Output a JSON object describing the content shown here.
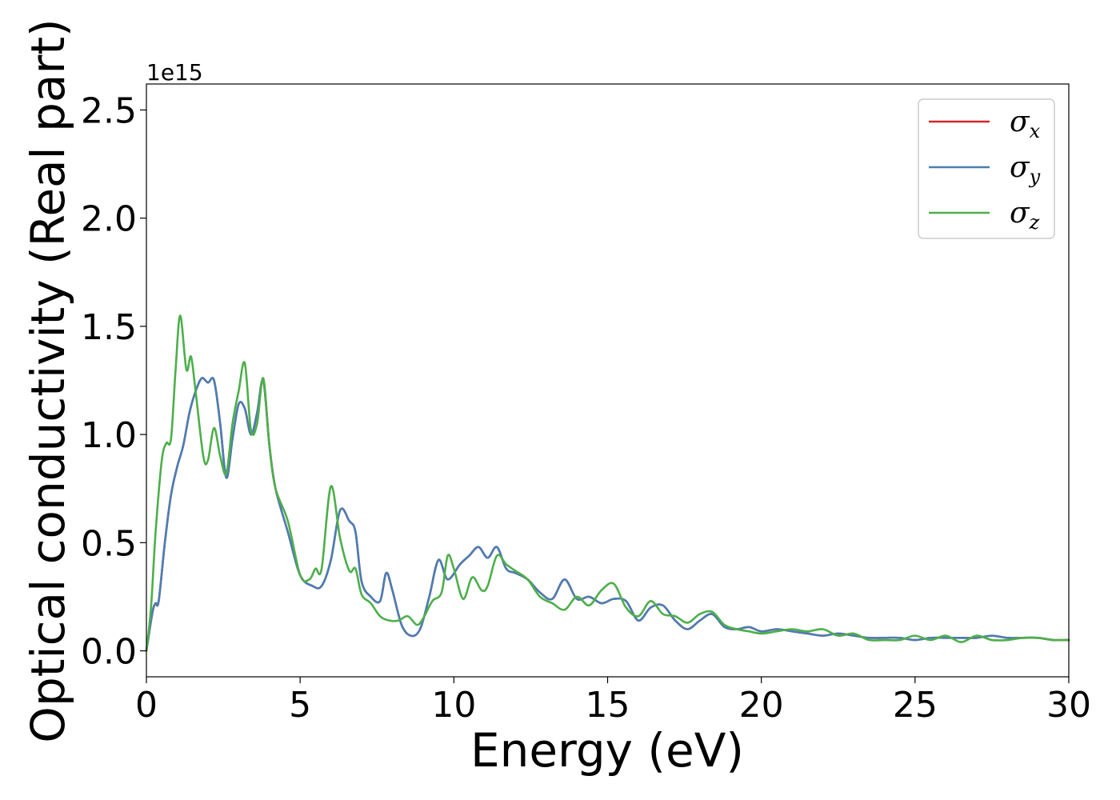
{
  "chart_data": {
    "type": "line",
    "xlabel": "Energy (eV)",
    "ylabel": "Optical conductivity (Real part)",
    "y_scale_note": "1e15",
    "xlim": [
      0,
      30
    ],
    "ylim": [
      -0.12,
      2.62
    ],
    "x_ticks": [
      0,
      5,
      10,
      15,
      20,
      25,
      30
    ],
    "y_ticks": [
      0.0,
      0.5,
      1.0,
      1.5,
      2.0,
      2.5
    ],
    "x_tick_labels": [
      "0",
      "5",
      "10",
      "15",
      "20",
      "25",
      "30"
    ],
    "y_tick_labels": [
      "0.0",
      "0.5",
      "1.0",
      "1.5",
      "2.0",
      "2.5"
    ],
    "grid": false,
    "legend_position": "top-right",
    "series": [
      {
        "name": "σx",
        "base": "σ",
        "sub": "x",
        "color": "#d62728",
        "x": [
          0,
          0.2,
          0.3,
          0.4,
          0.6,
          0.8,
          1.0,
          1.2,
          1.4,
          1.6,
          1.8,
          2.0,
          2.2,
          2.4,
          2.6,
          2.8,
          3.0,
          3.2,
          3.4,
          3.6,
          3.8,
          4.0,
          4.2,
          4.6,
          5.0,
          5.4,
          5.7,
          6.0,
          6.3,
          6.6,
          6.8,
          7.0,
          7.3,
          7.6,
          7.8,
          8.0,
          8.3,
          8.6,
          8.9,
          9.2,
          9.5,
          9.8,
          10.2,
          10.5,
          10.8,
          11.1,
          11.4,
          11.7,
          12.0,
          12.4,
          12.8,
          13.2,
          13.6,
          14.0,
          14.4,
          14.8,
          15.2,
          15.6,
          16.0,
          16.4,
          16.8,
          17.2,
          17.6,
          18.0,
          18.4,
          18.8,
          19.2,
          19.6,
          20.0,
          20.5,
          21.0,
          21.5,
          22.0,
          22.5,
          23.0,
          23.5,
          24.0,
          24.5,
          25.0,
          25.5,
          26.0,
          26.5,
          27.0,
          27.5,
          28.0,
          28.5,
          29.0,
          29.5,
          30.0
        ],
        "values": [
          0.0,
          0.18,
          0.22,
          0.23,
          0.5,
          0.72,
          0.85,
          0.95,
          1.1,
          1.2,
          1.26,
          1.24,
          1.25,
          1.05,
          0.8,
          0.98,
          1.14,
          1.12,
          1.0,
          1.1,
          1.25,
          0.95,
          0.75,
          0.55,
          0.35,
          0.3,
          0.3,
          0.42,
          0.65,
          0.6,
          0.55,
          0.32,
          0.25,
          0.23,
          0.36,
          0.28,
          0.12,
          0.07,
          0.1,
          0.25,
          0.42,
          0.33,
          0.4,
          0.44,
          0.48,
          0.43,
          0.48,
          0.38,
          0.36,
          0.33,
          0.27,
          0.24,
          0.33,
          0.24,
          0.25,
          0.22,
          0.24,
          0.23,
          0.14,
          0.2,
          0.21,
          0.14,
          0.1,
          0.14,
          0.17,
          0.11,
          0.1,
          0.11,
          0.09,
          0.1,
          0.09,
          0.08,
          0.07,
          0.08,
          0.07,
          0.06,
          0.06,
          0.06,
          0.05,
          0.06,
          0.06,
          0.06,
          0.06,
          0.07,
          0.06,
          0.06,
          0.06,
          0.05,
          0.05
        ]
      },
      {
        "name": "σy",
        "base": "σ",
        "sub": "y",
        "color": "#4a7eb4",
        "x": [
          0,
          0.2,
          0.3,
          0.4,
          0.6,
          0.8,
          1.0,
          1.2,
          1.4,
          1.6,
          1.8,
          2.0,
          2.2,
          2.4,
          2.6,
          2.8,
          3.0,
          3.2,
          3.4,
          3.6,
          3.8,
          4.0,
          4.2,
          4.6,
          5.0,
          5.4,
          5.7,
          6.0,
          6.3,
          6.6,
          6.8,
          7.0,
          7.3,
          7.6,
          7.8,
          8.0,
          8.3,
          8.6,
          8.9,
          9.2,
          9.5,
          9.8,
          10.2,
          10.5,
          10.8,
          11.1,
          11.4,
          11.7,
          12.0,
          12.4,
          12.8,
          13.2,
          13.6,
          14.0,
          14.4,
          14.8,
          15.2,
          15.6,
          16.0,
          16.4,
          16.8,
          17.2,
          17.6,
          18.0,
          18.4,
          18.8,
          19.2,
          19.6,
          20.0,
          20.5,
          21.0,
          21.5,
          22.0,
          22.5,
          23.0,
          23.5,
          24.0,
          24.5,
          25.0,
          25.5,
          26.0,
          26.5,
          27.0,
          27.5,
          28.0,
          28.5,
          29.0,
          29.5,
          30.0
        ],
        "values": [
          0.0,
          0.18,
          0.22,
          0.23,
          0.5,
          0.72,
          0.85,
          0.95,
          1.1,
          1.2,
          1.26,
          1.24,
          1.25,
          1.05,
          0.8,
          0.98,
          1.14,
          1.12,
          1.0,
          1.1,
          1.25,
          0.95,
          0.75,
          0.55,
          0.35,
          0.3,
          0.3,
          0.42,
          0.65,
          0.6,
          0.55,
          0.32,
          0.25,
          0.23,
          0.36,
          0.28,
          0.12,
          0.07,
          0.1,
          0.25,
          0.42,
          0.33,
          0.4,
          0.44,
          0.48,
          0.43,
          0.48,
          0.38,
          0.36,
          0.33,
          0.27,
          0.24,
          0.33,
          0.24,
          0.25,
          0.22,
          0.24,
          0.23,
          0.14,
          0.2,
          0.21,
          0.14,
          0.1,
          0.14,
          0.17,
          0.11,
          0.1,
          0.11,
          0.09,
          0.1,
          0.09,
          0.08,
          0.07,
          0.08,
          0.07,
          0.06,
          0.06,
          0.06,
          0.05,
          0.06,
          0.06,
          0.06,
          0.06,
          0.07,
          0.06,
          0.06,
          0.06,
          0.05,
          0.05
        ]
      },
      {
        "name": "σz",
        "base": "σ",
        "sub": "z",
        "color": "#4daf4a",
        "x": [
          0,
          0.15,
          0.3,
          0.5,
          0.65,
          0.8,
          0.95,
          1.1,
          1.3,
          1.45,
          1.6,
          1.85,
          2.0,
          2.2,
          2.4,
          2.6,
          2.8,
          3.0,
          3.2,
          3.4,
          3.6,
          3.8,
          4.0,
          4.2,
          4.6,
          5.0,
          5.3,
          5.5,
          5.7,
          6.0,
          6.3,
          6.6,
          6.8,
          7.0,
          7.3,
          7.6,
          7.9,
          8.2,
          8.5,
          8.8,
          9.0,
          9.3,
          9.6,
          9.8,
          10.0,
          10.3,
          10.6,
          10.9,
          11.1,
          11.4,
          11.7,
          12.0,
          12.4,
          12.8,
          13.2,
          13.6,
          14.0,
          14.4,
          14.8,
          15.2,
          15.6,
          16.0,
          16.4,
          16.8,
          17.2,
          17.6,
          18.0,
          18.4,
          18.8,
          19.2,
          19.6,
          20.0,
          20.5,
          21.0,
          21.5,
          22.0,
          22.5,
          23.0,
          23.5,
          24.0,
          24.5,
          25.0,
          25.5,
          26.0,
          26.5,
          27.0,
          27.5,
          28.0,
          28.5,
          29.0,
          29.5,
          30.0
        ],
        "values": [
          0.0,
          0.2,
          0.55,
          0.88,
          0.96,
          0.98,
          1.3,
          1.55,
          1.3,
          1.36,
          1.2,
          0.9,
          0.88,
          1.03,
          0.9,
          0.82,
          1.05,
          1.2,
          1.33,
          1.02,
          1.05,
          1.26,
          0.95,
          0.75,
          0.6,
          0.35,
          0.33,
          0.38,
          0.38,
          0.76,
          0.52,
          0.37,
          0.38,
          0.26,
          0.22,
          0.16,
          0.14,
          0.14,
          0.16,
          0.12,
          0.15,
          0.23,
          0.27,
          0.44,
          0.38,
          0.24,
          0.34,
          0.28,
          0.3,
          0.44,
          0.4,
          0.37,
          0.33,
          0.25,
          0.22,
          0.19,
          0.25,
          0.21,
          0.28,
          0.31,
          0.2,
          0.16,
          0.23,
          0.17,
          0.16,
          0.13,
          0.17,
          0.18,
          0.12,
          0.1,
          0.09,
          0.08,
          0.09,
          0.1,
          0.09,
          0.1,
          0.07,
          0.08,
          0.05,
          0.05,
          0.05,
          0.07,
          0.05,
          0.07,
          0.04,
          0.07,
          0.05,
          0.05,
          0.06,
          0.06,
          0.05,
          0.05
        ]
      }
    ]
  }
}
